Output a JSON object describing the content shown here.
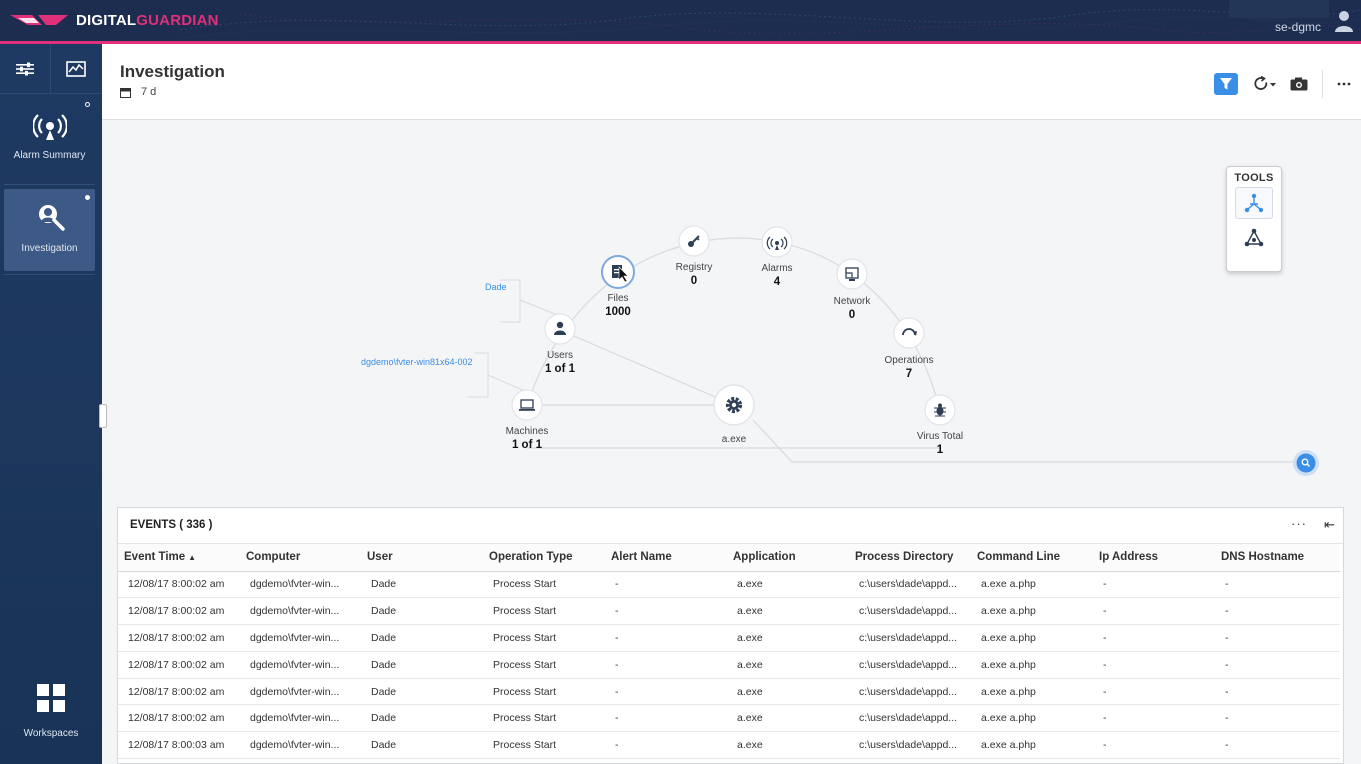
{
  "brand": {
    "part1": "DIGITAL",
    "part2": "GUARDIAN"
  },
  "user": {
    "name": "se-dgmc"
  },
  "nav": {
    "items": [
      {
        "label": "Alarm Summary",
        "icon": "alarm-icon"
      },
      {
        "label": "Investigation",
        "icon": "investigation-icon"
      }
    ],
    "workspaces_label": "Workspaces"
  },
  "header": {
    "title": "Investigation",
    "range": "7 d"
  },
  "graph": {
    "nodes": [
      {
        "id": "files",
        "label": "Files",
        "value": "1000",
        "icon": "file-icon"
      },
      {
        "id": "registry",
        "label": "Registry",
        "value": "0",
        "icon": "registry-icon"
      },
      {
        "id": "alarms",
        "label": "Alarms",
        "value": "4",
        "icon": "alarm-icon"
      },
      {
        "id": "network",
        "label": "Network",
        "value": "0",
        "icon": "network-icon"
      },
      {
        "id": "operations",
        "label": "Operations",
        "value": "7",
        "icon": "operations-icon"
      },
      {
        "id": "virustotal",
        "label": "Virus Total",
        "value": "1",
        "icon": "bug-icon"
      },
      {
        "id": "users",
        "label": "Users",
        "value": "1 of 1",
        "icon": "user-icon"
      },
      {
        "id": "machines",
        "label": "Machines",
        "value": "1 of 1",
        "icon": "laptop-icon"
      },
      {
        "id": "process",
        "label": "a.exe",
        "value": "",
        "icon": "gear-icon"
      }
    ],
    "path_labels": {
      "user": "Dade",
      "machine": "dgdemo\\fvter-win81x64-002"
    }
  },
  "tools": {
    "title": "TOOLS"
  },
  "events": {
    "title": "EVENTS ( 336 )",
    "columns": [
      "Event Time",
      "Computer",
      "User",
      "Operation Type",
      "Alert Name",
      "Application",
      "Process Directory",
      "Command Line",
      "Ip Address",
      "DNS Hostname"
    ],
    "rows": [
      [
        "12/08/17 8:00:02 am",
        "dgdemo\\fvter-win...",
        "Dade",
        "Process Start",
        "-",
        "a.exe",
        "c:\\users\\dade\\appd...",
        "a.exe a.php",
        "-",
        "-"
      ],
      [
        "12/08/17 8:00:02 am",
        "dgdemo\\fvter-win...",
        "Dade",
        "Process Start",
        "-",
        "a.exe",
        "c:\\users\\dade\\appd...",
        "a.exe a.php",
        "-",
        "-"
      ],
      [
        "12/08/17 8:00:02 am",
        "dgdemo\\fvter-win...",
        "Dade",
        "Process Start",
        "-",
        "a.exe",
        "c:\\users\\dade\\appd...",
        "a.exe a.php",
        "-",
        "-"
      ],
      [
        "12/08/17 8:00:02 am",
        "dgdemo\\fvter-win...",
        "Dade",
        "Process Start",
        "-",
        "a.exe",
        "c:\\users\\dade\\appd...",
        "a.exe a.php",
        "-",
        "-"
      ],
      [
        "12/08/17 8:00:02 am",
        "dgdemo\\fvter-win...",
        "Dade",
        "Process Start",
        "-",
        "a.exe",
        "c:\\users\\dade\\appd...",
        "a.exe a.php",
        "-",
        "-"
      ],
      [
        "12/08/17 8:00:02 am",
        "dgdemo\\fvter-win...",
        "Dade",
        "Process Start",
        "-",
        "a.exe",
        "c:\\users\\dade\\appd...",
        "a.exe a.php",
        "-",
        "-"
      ],
      [
        "12/08/17 8:00:03 am",
        "dgdemo\\fvter-win...",
        "Dade",
        "Process Start",
        "-",
        "a.exe",
        "c:\\users\\dade\\appd...",
        "a.exe a.php",
        "-",
        "-"
      ]
    ]
  },
  "colors": {
    "topbar": "#1d2d4f",
    "accent_pink": "#e0307a",
    "nav": "#1f3a62",
    "primary_blue": "#3a8ee6"
  }
}
